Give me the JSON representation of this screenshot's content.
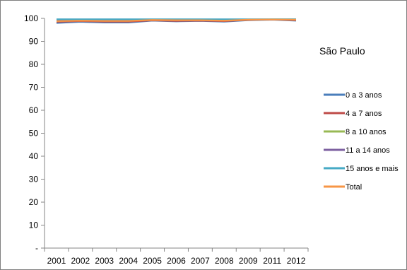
{
  "chart_data": {
    "type": "line",
    "title": "São Paulo",
    "categories": [
      "2001",
      "2002",
      "2003",
      "2004",
      "2005",
      "2006",
      "2007",
      "2008",
      "2009",
      "2011",
      "2012"
    ],
    "ylim": [
      0,
      100
    ],
    "yticks": [
      0,
      10,
      20,
      30,
      40,
      50,
      60,
      70,
      80,
      90,
      100
    ],
    "ytick_labels": [
      "-",
      "10",
      "20",
      "30",
      "40",
      "50",
      "60",
      "70",
      "80",
      "90",
      "100"
    ],
    "grid": false,
    "legend_position": "right",
    "series": [
      {
        "name": "0 a 3 anos",
        "color": "#4A7EBB",
        "values": [
          98.0,
          98.5,
          98.2,
          98.2,
          99.0,
          98.7,
          98.9,
          98.6,
          99.2,
          99.4,
          99.0
        ]
      },
      {
        "name": "4 a 7 anos",
        "color": "#BE4B48",
        "values": [
          98.5,
          98.8,
          98.6,
          98.6,
          99.1,
          98.9,
          99.0,
          98.8,
          99.3,
          99.5,
          99.2
        ]
      },
      {
        "name": "8 a 10 anos",
        "color": "#98B954",
        "values": [
          99.5,
          99.5,
          99.5,
          99.5,
          99.5,
          99.5,
          99.5,
          99.5,
          99.5,
          99.6,
          99.6
        ]
      },
      {
        "name": "11 a 14 anos",
        "color": "#7D60A0",
        "values": [
          99.2,
          99.3,
          99.3,
          99.3,
          99.4,
          99.3,
          99.4,
          99.3,
          99.4,
          99.5,
          99.4
        ]
      },
      {
        "name": "15 anos e mais",
        "color": "#46AAC5",
        "values": [
          99.6,
          99.6,
          99.6,
          99.6,
          99.6,
          99.6,
          99.6,
          99.6,
          99.6,
          99.6,
          99.6
        ]
      },
      {
        "name": "Total",
        "color": "#F79646",
        "values": [
          98.8,
          99.0,
          98.9,
          98.9,
          99.3,
          99.2,
          99.2,
          99.0,
          99.4,
          99.5,
          99.4
        ]
      }
    ]
  }
}
